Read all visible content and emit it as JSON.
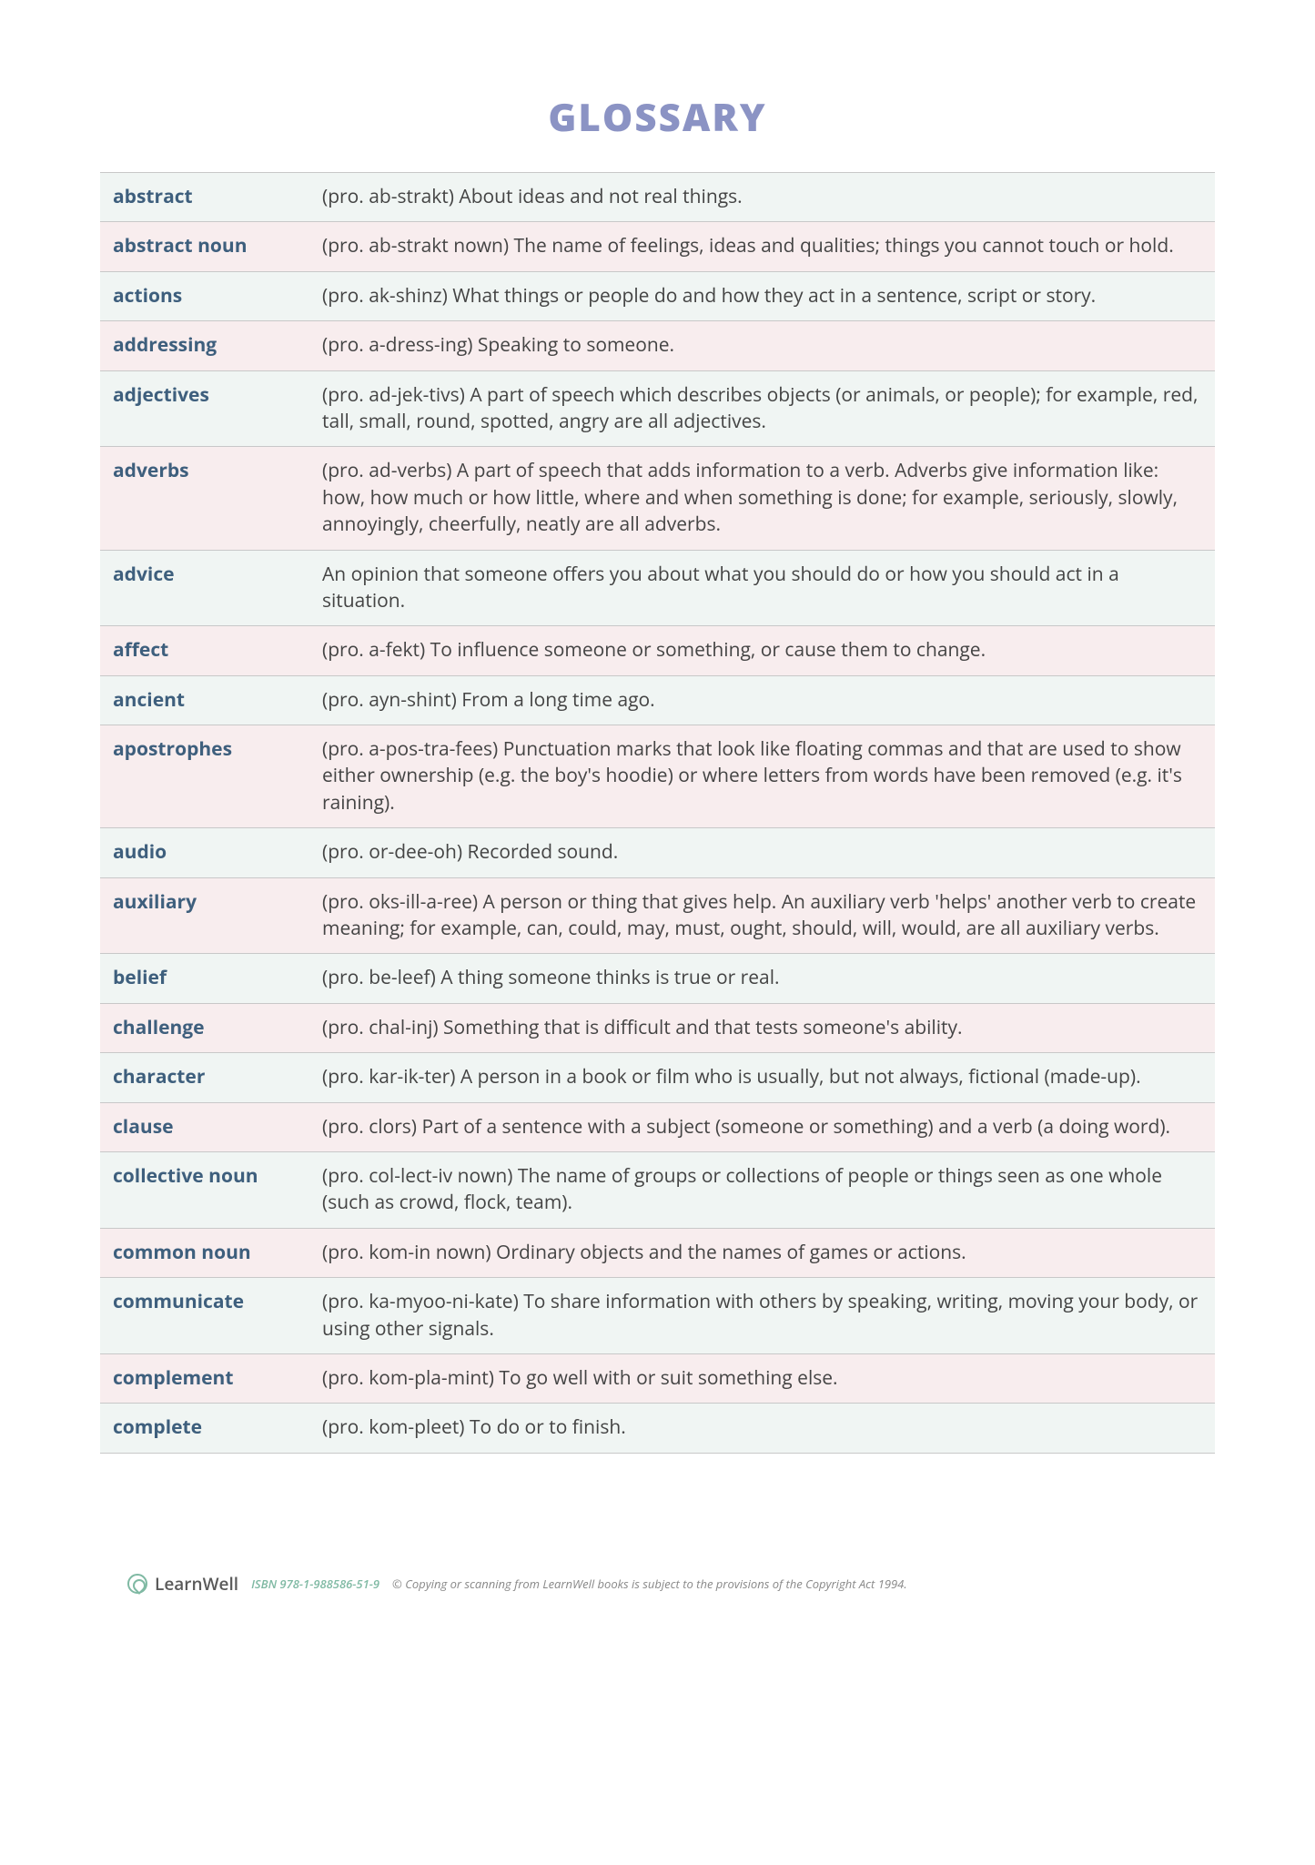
{
  "title": "GLOSSARY",
  "colors": {
    "title": "#8b93c4",
    "term": "#3e5f7d",
    "row_odd_bg": "#f0f5f3",
    "row_even_bg": "#f8edee",
    "border": "#c8c8c8",
    "body_text": "#444444",
    "footer_accent": "#7fb9a3",
    "footer_muted": "#888888"
  },
  "typography": {
    "title_fontsize": 42,
    "title_weight": 800,
    "body_fontsize": 21,
    "term_weight": 700
  },
  "entries": [
    {
      "term": "abstract",
      "def": "(pro. ab-strakt) About ideas and not real things."
    },
    {
      "term": "abstract noun",
      "def": "(pro. ab-strakt nown) The name of feelings, ideas and qualities; things you cannot touch or hold."
    },
    {
      "term": "actions",
      "def": "(pro. ak-shinz) What things or people do and how they act in a sentence, script or story."
    },
    {
      "term": "addressing",
      "def": "(pro. a-dress-ing) Speaking to someone."
    },
    {
      "term": "adjectives",
      "def": "(pro. ad-jek-tivs) A part of speech which describes objects (or animals, or people); for example, red, tall, small, round, spotted, angry are all adjectives."
    },
    {
      "term": "adverbs",
      "def": "(pro. ad-verbs) A part of speech that adds information to a verb. Adverbs give information like: how, how much or how little, where and when something is done; for example, seriously, slowly, annoyingly, cheerfully, neatly are all adverbs."
    },
    {
      "term": "advice",
      "def": "An opinion that someone offers you about what you should do or how you should act in a situation."
    },
    {
      "term": "affect",
      "def": "(pro. a-fekt) To influence someone or something, or cause them to change."
    },
    {
      "term": "ancient",
      "def": "(pro. ayn-shint) From a long time ago."
    },
    {
      "term": "apostrophes",
      "def": "(pro. a-pos-tra-fees) Punctuation marks that look like floating commas and that are used to show either ownership (e.g. the boy's hoodie) or where letters from words have been removed (e.g. it's raining)."
    },
    {
      "term": "audio",
      "def": "(pro. or-dee-oh) Recorded sound."
    },
    {
      "term": "auxiliary",
      "def": "(pro. oks-ill-a-ree) A person or thing that gives help. An auxiliary verb 'helps' another verb to create meaning; for example, can, could, may, must, ought, should, will, would, are all auxiliary verbs."
    },
    {
      "term": "belief",
      "def": "(pro. be-leef) A thing someone thinks is true or real."
    },
    {
      "term": "challenge",
      "def": "(pro. chal-inj) Something that is difficult and that tests someone's ability."
    },
    {
      "term": "character",
      "def": "(pro. kar-ik-ter) A person in a book or film who is usually, but not always, fictional (made-up)."
    },
    {
      "term": "clause",
      "def": "(pro. clors) Part of a sentence with a subject (someone or something) and a verb (a doing word)."
    },
    {
      "term": "collective noun",
      "def": "(pro. col-lect-iv nown) The name of groups or collections of people or things seen as one whole (such as crowd, flock, team)."
    },
    {
      "term": "common noun",
      "def": "(pro. kom-in nown) Ordinary objects and the names of games or actions."
    },
    {
      "term": "communicate",
      "def": "(pro. ka-myoo-ni-kate) To share information with others by speaking, writing, moving your body, or using other signals."
    },
    {
      "term": "complement",
      "def": "(pro. kom-pla-mint) To go well with or suit something else."
    },
    {
      "term": "complete",
      "def": "(pro. kom-pleet) To do or to finish."
    }
  ],
  "footer": {
    "brand": "LearnWell",
    "isbn": "ISBN 978-1-988586-51-9",
    "copyright": "© Copying or scanning from LearnWell books is subject to the provisions of the Copyright Act 1994."
  }
}
